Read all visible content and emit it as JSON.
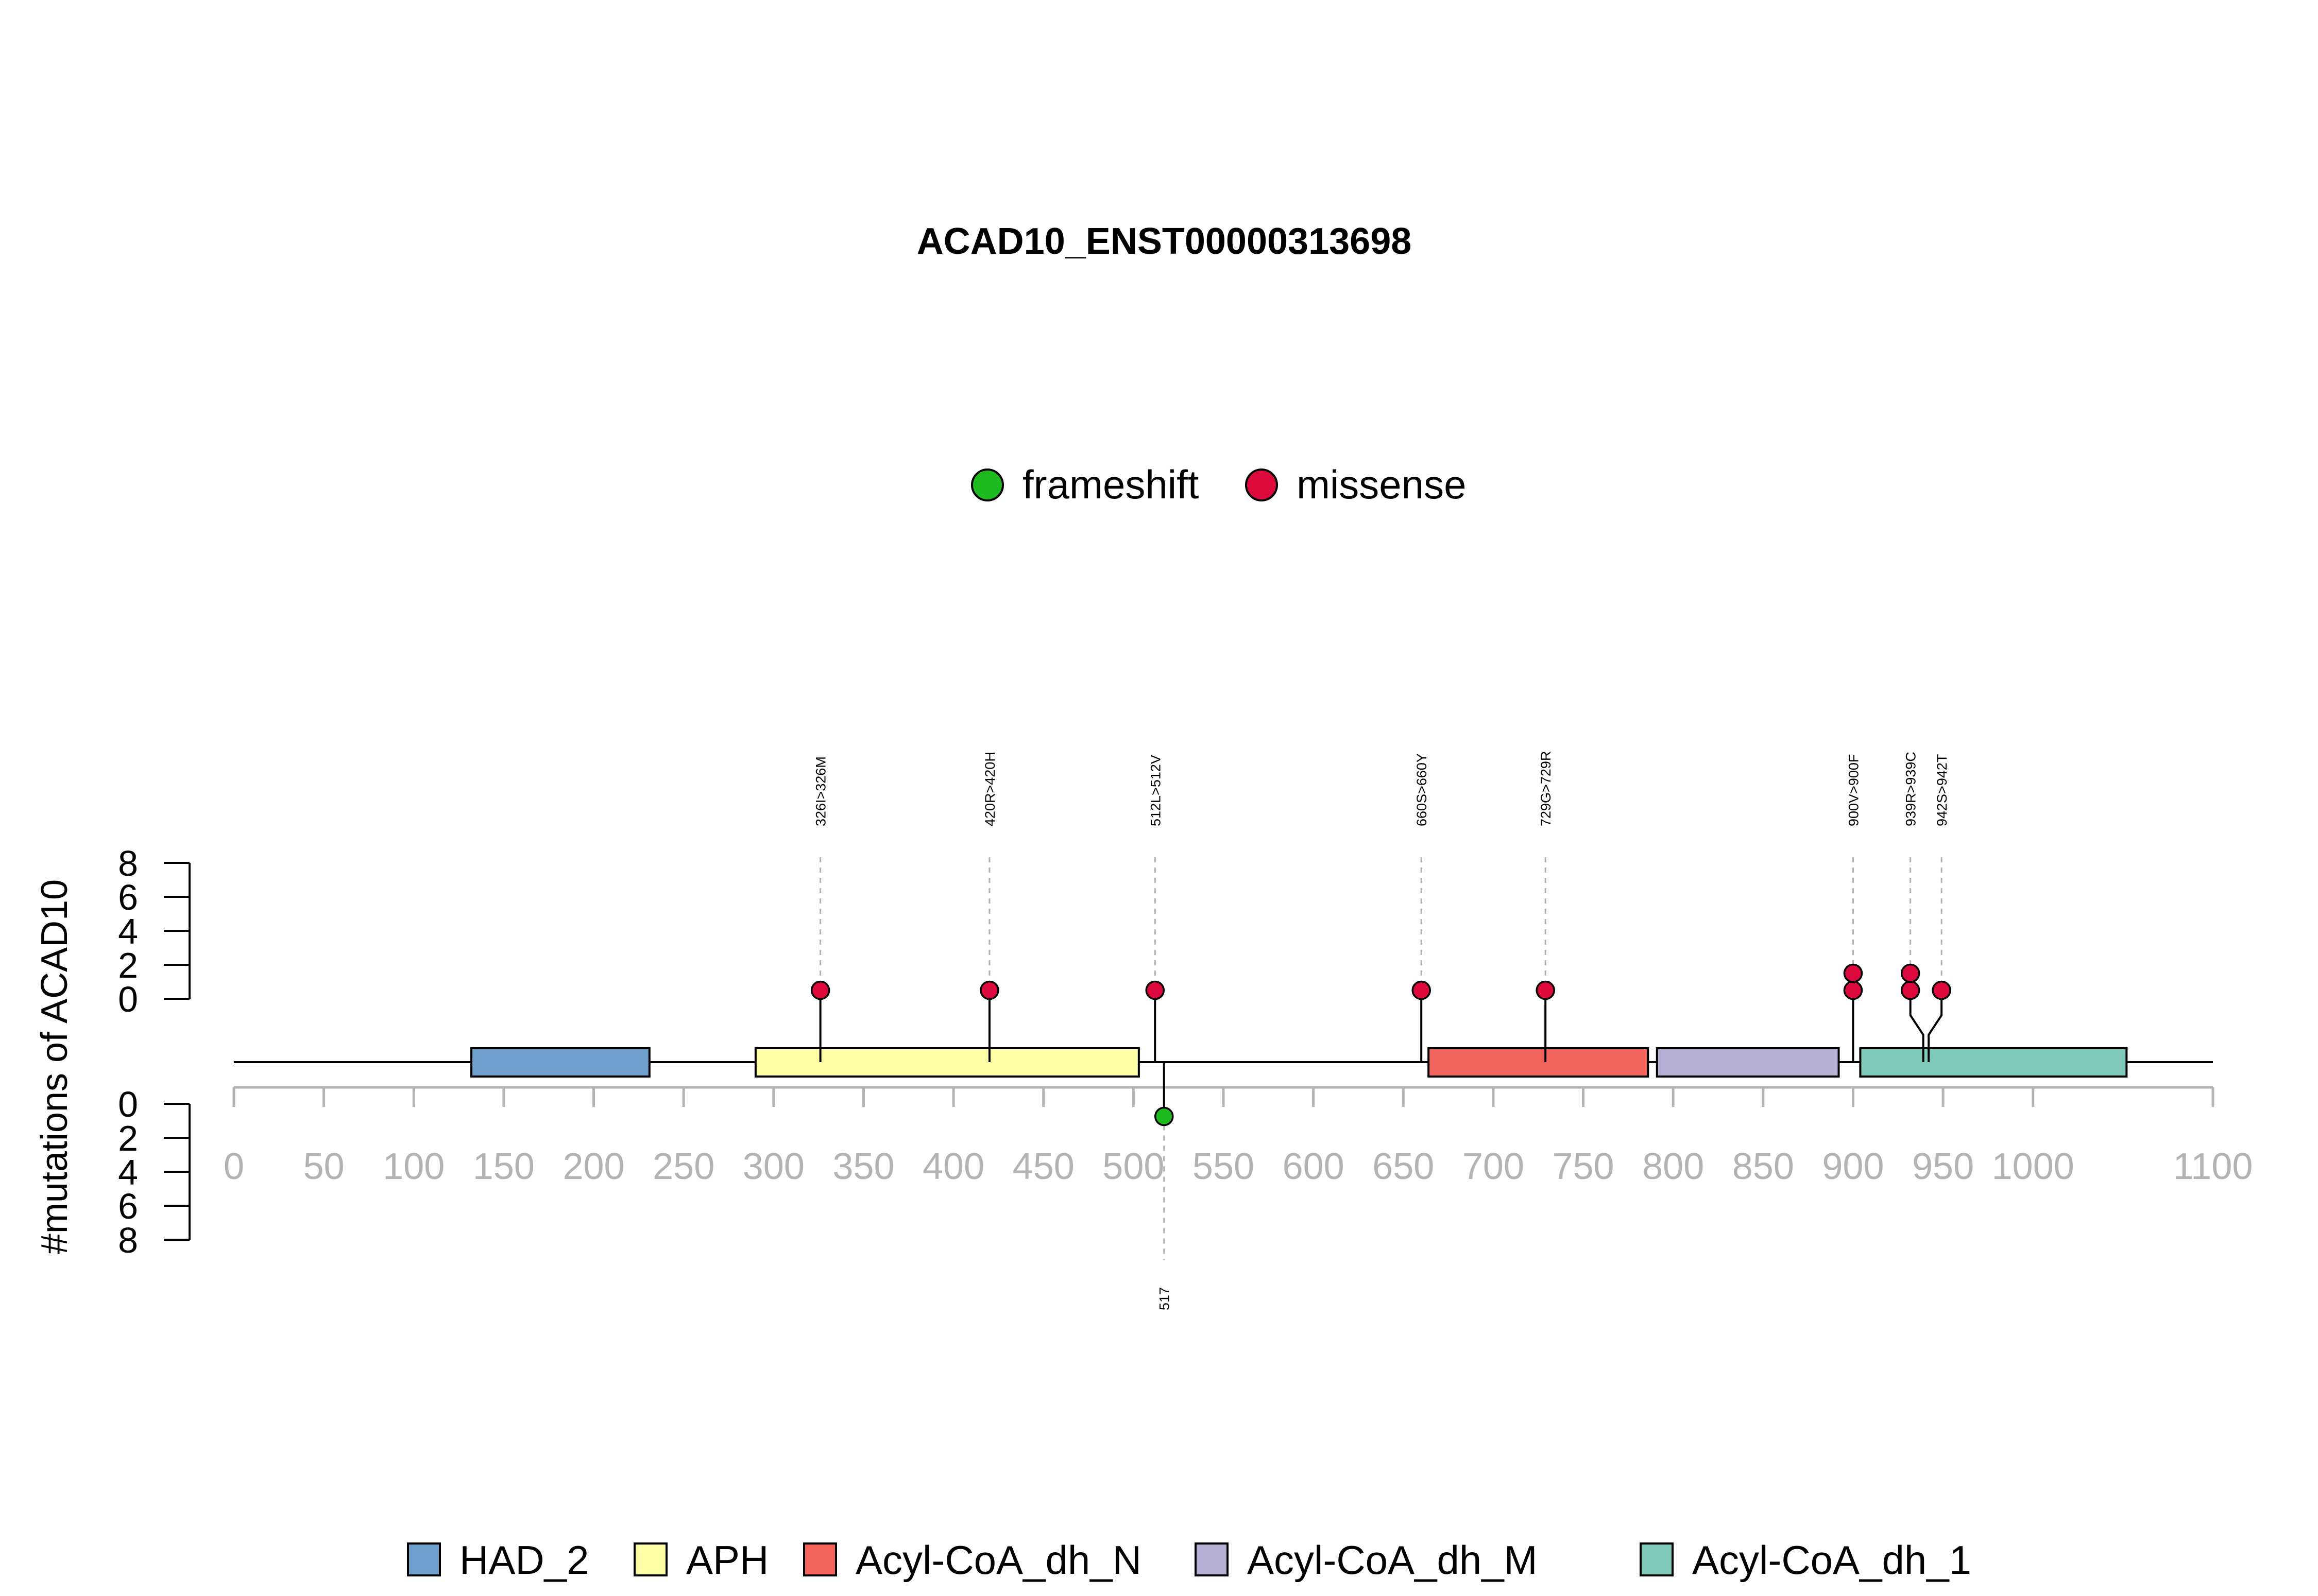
{
  "chart_data": {
    "type": "lollipop",
    "title": "ACAD10_ENST00000313698",
    "ylabel": "#mutations of ACAD10",
    "protein_length": 1100,
    "xlim": [
      0,
      1100
    ],
    "x_ticks": [
      0,
      50,
      100,
      150,
      200,
      250,
      300,
      350,
      400,
      450,
      500,
      550,
      600,
      650,
      700,
      750,
      800,
      850,
      900,
      950,
      1000,
      1100
    ],
    "y_ticks_top": [
      0,
      2,
      4,
      6,
      8
    ],
    "y_ticks_bottom": [
      0,
      2,
      4,
      6,
      8
    ],
    "mutation_types": [
      {
        "name": "frameshift",
        "color": "#1eba1e"
      },
      {
        "name": "missense",
        "color": "#dc0a3c"
      }
    ],
    "domains": [
      {
        "name": "HAD_2",
        "start": 132,
        "end": 231,
        "color": "#6e9fcd"
      },
      {
        "name": "APH",
        "start": 290,
        "end": 503,
        "color": "#fdfda6"
      },
      {
        "name": "Acyl-CoA_dh_N",
        "start": 664,
        "end": 786,
        "color": "#f3655c"
      },
      {
        "name": "Acyl-CoA_dh_M",
        "start": 791,
        "end": 892,
        "color": "#b4b0d3"
      },
      {
        "name": "Acyl-CoA_dh_1",
        "start": 904,
        "end": 1052,
        "color": "#7fcab8"
      }
    ],
    "mutations_top": [
      {
        "position": 326,
        "label": "326I>326M",
        "type": "missense",
        "count": 1
      },
      {
        "position": 420,
        "label": "420R>420H",
        "type": "missense",
        "count": 1
      },
      {
        "position": 512,
        "label": "512L>512V",
        "type": "missense",
        "count": 1
      },
      {
        "position": 660,
        "label": "660S>660Y",
        "type": "missense",
        "count": 1
      },
      {
        "position": 729,
        "label": "729G>729R",
        "type": "missense",
        "count": 1
      },
      {
        "position": 900,
        "label": "900V>900F",
        "type": "missense",
        "count": 2
      },
      {
        "position": 939,
        "label": "939R>939C",
        "type": "missense",
        "count": 2
      },
      {
        "position": 942,
        "label": "942S>942T",
        "type": "missense",
        "count": 1
      }
    ],
    "mutations_bottom": [
      {
        "position": 517,
        "label": "517",
        "type": "frameshift",
        "count": 1
      }
    ]
  }
}
